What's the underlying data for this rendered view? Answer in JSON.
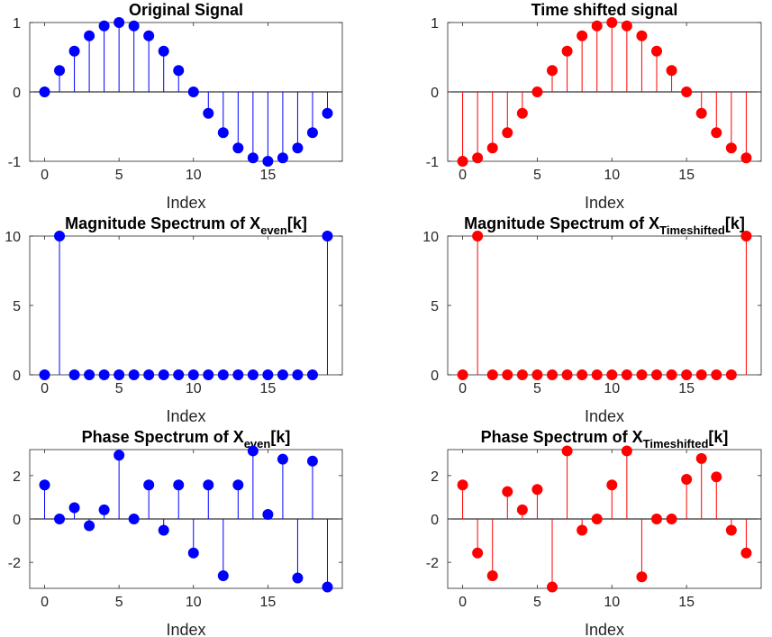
{
  "chart_data": [
    {
      "type": "stem",
      "title": "Original Signal",
      "title_parts": [
        {
          "t": "Original Signal"
        }
      ],
      "xlabel": "Index",
      "color": "#0000ff",
      "x": [
        0,
        1,
        2,
        3,
        4,
        5,
        6,
        7,
        8,
        9,
        10,
        11,
        12,
        13,
        14,
        15,
        16,
        17,
        18,
        19
      ],
      "values": [
        0,
        0.309,
        0.588,
        0.809,
        0.951,
        1.0,
        0.951,
        0.809,
        0.588,
        0.309,
        0,
        -0.309,
        -0.588,
        -0.809,
        -0.951,
        -1.0,
        -0.951,
        -0.809,
        -0.588,
        -0.309
      ],
      "xlim": [
        -1,
        20
      ],
      "ylim": [
        -1,
        1
      ],
      "xticks": [
        0,
        5,
        10,
        15
      ],
      "yticks": [
        -1,
        0,
        1
      ]
    },
    {
      "type": "stem",
      "title": "Time shifted signal",
      "title_parts": [
        {
          "t": "Time shifted signal"
        }
      ],
      "xlabel": "Index",
      "color": "#ff0000",
      "x": [
        0,
        1,
        2,
        3,
        4,
        5,
        6,
        7,
        8,
        9,
        10,
        11,
        12,
        13,
        14,
        15,
        16,
        17,
        18,
        19
      ],
      "values": [
        -1.0,
        -0.951,
        -0.809,
        -0.588,
        -0.309,
        0,
        0.309,
        0.588,
        0.809,
        0.951,
        1.0,
        0.951,
        0.809,
        0.588,
        0.309,
        0,
        -0.309,
        -0.588,
        -0.809,
        -0.951
      ],
      "xlim": [
        -1,
        20
      ],
      "ylim": [
        -1,
        1
      ],
      "xticks": [
        0,
        5,
        10,
        15
      ],
      "yticks": [
        -1,
        0,
        1
      ]
    },
    {
      "type": "stem",
      "title": "Magnitude Spectrum of X_even[k]",
      "title_parts": [
        {
          "t": "Magnitude Spectrum of X"
        },
        {
          "t": "even",
          "sub": true
        },
        {
          "t": "[k]"
        }
      ],
      "xlabel": "Index",
      "color": "#0000ff",
      "x": [
        0,
        1,
        2,
        3,
        4,
        5,
        6,
        7,
        8,
        9,
        10,
        11,
        12,
        13,
        14,
        15,
        16,
        17,
        18,
        19
      ],
      "values": [
        0,
        10,
        0,
        0,
        0,
        0,
        0,
        0,
        0,
        0,
        0,
        0,
        0,
        0,
        0,
        0,
        0,
        0,
        0,
        10
      ],
      "xlim": [
        -1,
        20
      ],
      "ylim": [
        0,
        10
      ],
      "xticks": [
        0,
        5,
        10,
        15
      ],
      "yticks": [
        0,
        5,
        10
      ]
    },
    {
      "type": "stem",
      "title": "Magnitude Spectrum of X_Timeshifted[k]",
      "title_parts": [
        {
          "t": "Magnitude Spectrum of X"
        },
        {
          "t": "Timeshifted",
          "sub": true
        },
        {
          "t": "[k]"
        }
      ],
      "xlabel": "Index",
      "color": "#ff0000",
      "x": [
        0,
        1,
        2,
        3,
        4,
        5,
        6,
        7,
        8,
        9,
        10,
        11,
        12,
        13,
        14,
        15,
        16,
        17,
        18,
        19
      ],
      "values": [
        0,
        10,
        0,
        0,
        0,
        0,
        0,
        0,
        0,
        0,
        0,
        0,
        0,
        0,
        0,
        0,
        0,
        0,
        0,
        10
      ],
      "xlim": [
        -1,
        20
      ],
      "ylim": [
        0,
        10
      ],
      "xticks": [
        0,
        5,
        10,
        15
      ],
      "yticks": [
        0,
        5,
        10
      ]
    },
    {
      "type": "stem",
      "title": "Phase Spectrum of X_even[k]",
      "title_parts": [
        {
          "t": "Phase Spectrum of X"
        },
        {
          "t": "even",
          "sub": true
        },
        {
          "t": "[k]"
        }
      ],
      "xlabel": "Index",
      "color": "#0000ff",
      "x": [
        0,
        1,
        2,
        3,
        4,
        5,
        6,
        7,
        8,
        9,
        10,
        11,
        12,
        13,
        14,
        15,
        16,
        17,
        18,
        19
      ],
      "values": [
        1.57,
        0,
        0.52,
        -0.31,
        0.42,
        2.94,
        0,
        1.57,
        -0.52,
        1.57,
        -1.57,
        1.57,
        -2.62,
        1.57,
        3.14,
        0.21,
        2.76,
        -2.72,
        2.67,
        -3.14
      ],
      "xlim": [
        -1,
        20
      ],
      "ylim": [
        -3.2,
        3.2
      ],
      "xticks": [
        0,
        5,
        10,
        15
      ],
      "yticks": [
        -2,
        0,
        2
      ]
    },
    {
      "type": "stem",
      "title": "Phase Spectrum of X_Timeshifted[k]",
      "title_parts": [
        {
          "t": "Phase Spectrum of X"
        },
        {
          "t": "Timeshifted",
          "sub": true
        },
        {
          "t": "[k]"
        }
      ],
      "xlabel": "Index",
      "color": "#ff0000",
      "x": [
        0,
        1,
        2,
        3,
        4,
        5,
        6,
        7,
        8,
        9,
        10,
        11,
        12,
        13,
        14,
        15,
        16,
        17,
        18,
        19
      ],
      "values": [
        1.57,
        -1.57,
        -2.62,
        1.26,
        0.42,
        1.36,
        -3.14,
        3.14,
        -0.52,
        0,
        1.57,
        3.14,
        -2.67,
        0,
        0,
        1.83,
        2.79,
        1.94,
        -0.52,
        -1.57
      ],
      "xlim": [
        -1,
        20
      ],
      "ylim": [
        -3.2,
        3.2
      ],
      "xticks": [
        0,
        5,
        10,
        15
      ],
      "yticks": [
        -2,
        0,
        2
      ]
    }
  ]
}
